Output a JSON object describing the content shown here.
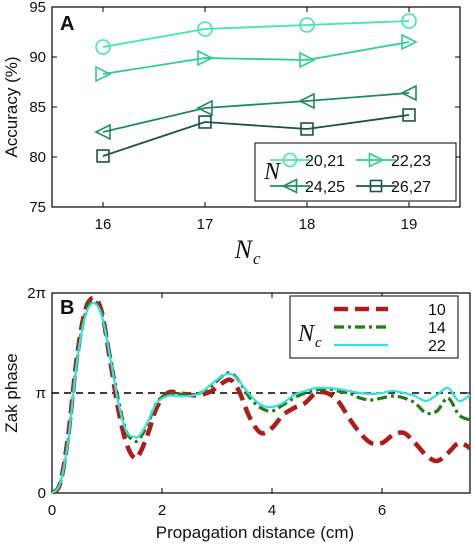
{
  "chart_data": [
    {
      "panel": "A",
      "type": "line",
      "xlabel_main": "N",
      "xlabel_sub": "c",
      "ylabel": "Accuracy (%)",
      "x": [
        16,
        17,
        18,
        19
      ],
      "xlim": [
        15.5,
        19.5
      ],
      "ylim": [
        75,
        95
      ],
      "xticks": [
        16,
        17,
        18,
        19
      ],
      "yticks": [
        75,
        80,
        85,
        90,
        95
      ],
      "grid": false,
      "legend_title": "N",
      "legend_placement": "bottom-right",
      "series": [
        {
          "name": "20,21",
          "values": [
            91.0,
            92.8,
            93.2,
            93.6
          ],
          "color": "#3ee8b0",
          "marker": "circle"
        },
        {
          "name": "22,23",
          "values": [
            88.3,
            89.9,
            89.7,
            91.5
          ],
          "color": "#2ccf8c",
          "marker": "triangle-right"
        },
        {
          "name": "24,25",
          "values": [
            82.5,
            84.9,
            85.6,
            86.4
          ],
          "color": "#1f8a5f",
          "marker": "triangle-left"
        },
        {
          "name": "26,27",
          "values": [
            80.1,
            83.5,
            82.8,
            84.2
          ],
          "color": "#17563f",
          "marker": "square"
        }
      ]
    },
    {
      "panel": "B",
      "type": "line",
      "xlabel": "Propagation distance (cm)",
      "ylabel": "Zak phase",
      "xlim": [
        0,
        7.6
      ],
      "ylim": [
        0,
        2
      ],
      "xticks": [
        0,
        2,
        4,
        6
      ],
      "yticks": [
        {
          "value": 0,
          "label": "0"
        },
        {
          "value": 1,
          "label": "π"
        },
        {
          "value": 2,
          "label": "2π"
        }
      ],
      "reference_line": {
        "y": 1,
        "style": "dashed",
        "color": "#000000"
      },
      "grid": false,
      "legend_title_main": "N",
      "legend_title_sub": "c",
      "legend_placement": "top-right",
      "series": [
        {
          "name": "10",
          "color": "#b01a1a",
          "dash": "long-dash",
          "x": [
            0,
            0.15,
            0.3,
            0.45,
            0.6,
            0.75,
            0.9,
            1.05,
            1.2,
            1.35,
            1.5,
            1.6,
            1.75,
            1.9,
            2.1,
            2.3,
            2.5,
            2.7,
            2.9,
            3.1,
            3.25,
            3.4,
            3.6,
            3.8,
            4.0,
            4.2,
            4.4,
            4.6,
            4.8,
            5.0,
            5.2,
            5.4,
            5.6,
            5.8,
            6.0,
            6.2,
            6.4,
            6.6,
            6.8,
            7.0,
            7.2,
            7.4,
            7.6
          ],
          "values": [
            0.0,
            0.1,
            0.6,
            1.35,
            1.82,
            1.95,
            1.82,
            1.35,
            0.85,
            0.5,
            0.35,
            0.4,
            0.6,
            0.85,
            1.0,
            1.0,
            0.98,
            0.98,
            1.02,
            1.1,
            1.13,
            1.02,
            0.75,
            0.6,
            0.65,
            0.78,
            0.85,
            0.9,
            1.0,
            1.0,
            0.92,
            0.75,
            0.6,
            0.5,
            0.5,
            0.58,
            0.6,
            0.5,
            0.38,
            0.32,
            0.4,
            0.5,
            0.45
          ]
        },
        {
          "name": "14",
          "color": "#237a10",
          "dash": "dash-dot",
          "x": [
            0,
            0.15,
            0.3,
            0.45,
            0.6,
            0.75,
            0.9,
            1.05,
            1.2,
            1.35,
            1.5,
            1.6,
            1.75,
            1.9,
            2.1,
            2.3,
            2.5,
            2.7,
            2.9,
            3.1,
            3.25,
            3.4,
            3.6,
            3.8,
            4.0,
            4.2,
            4.4,
            4.6,
            4.8,
            5.0,
            5.2,
            5.4,
            5.6,
            5.8,
            6.0,
            6.2,
            6.4,
            6.6,
            6.8,
            7.0,
            7.2,
            7.4,
            7.6
          ],
          "values": [
            0.0,
            0.1,
            0.55,
            1.3,
            1.78,
            1.92,
            1.8,
            1.4,
            0.95,
            0.62,
            0.52,
            0.55,
            0.7,
            0.9,
            0.99,
            0.99,
            0.98,
            1.0,
            1.07,
            1.17,
            1.2,
            1.12,
            0.95,
            0.85,
            0.82,
            0.88,
            0.95,
            1.0,
            1.03,
            1.04,
            1.02,
            1.0,
            0.95,
            0.93,
            0.95,
            0.97,
            0.95,
            0.9,
            0.8,
            0.82,
            0.95,
            0.78,
            0.73
          ]
        },
        {
          "name": "22",
          "color": "#36e0e0",
          "dash": "solid",
          "x": [
            0,
            0.15,
            0.3,
            0.45,
            0.6,
            0.75,
            0.9,
            1.05,
            1.2,
            1.35,
            1.5,
            1.6,
            1.75,
            1.9,
            2.1,
            2.3,
            2.5,
            2.7,
            2.9,
            3.1,
            3.25,
            3.4,
            3.6,
            3.8,
            4.0,
            4.2,
            4.4,
            4.6,
            4.8,
            5.0,
            5.2,
            5.4,
            5.6,
            5.8,
            6.0,
            6.2,
            6.4,
            6.6,
            6.8,
            7.0,
            7.2,
            7.4,
            7.6
          ],
          "values": [
            0.0,
            0.1,
            0.55,
            1.3,
            1.76,
            1.9,
            1.78,
            1.38,
            0.92,
            0.62,
            0.56,
            0.58,
            0.72,
            0.9,
            0.97,
            0.97,
            0.97,
            1.0,
            1.09,
            1.17,
            1.19,
            1.12,
            0.98,
            0.88,
            0.86,
            0.9,
            0.98,
            1.02,
            1.05,
            1.05,
            1.04,
            1.02,
            1.0,
            0.99,
            1.0,
            1.02,
            1.0,
            0.97,
            0.92,
            0.98,
            1.05,
            0.92,
            0.98
          ]
        }
      ]
    }
  ]
}
